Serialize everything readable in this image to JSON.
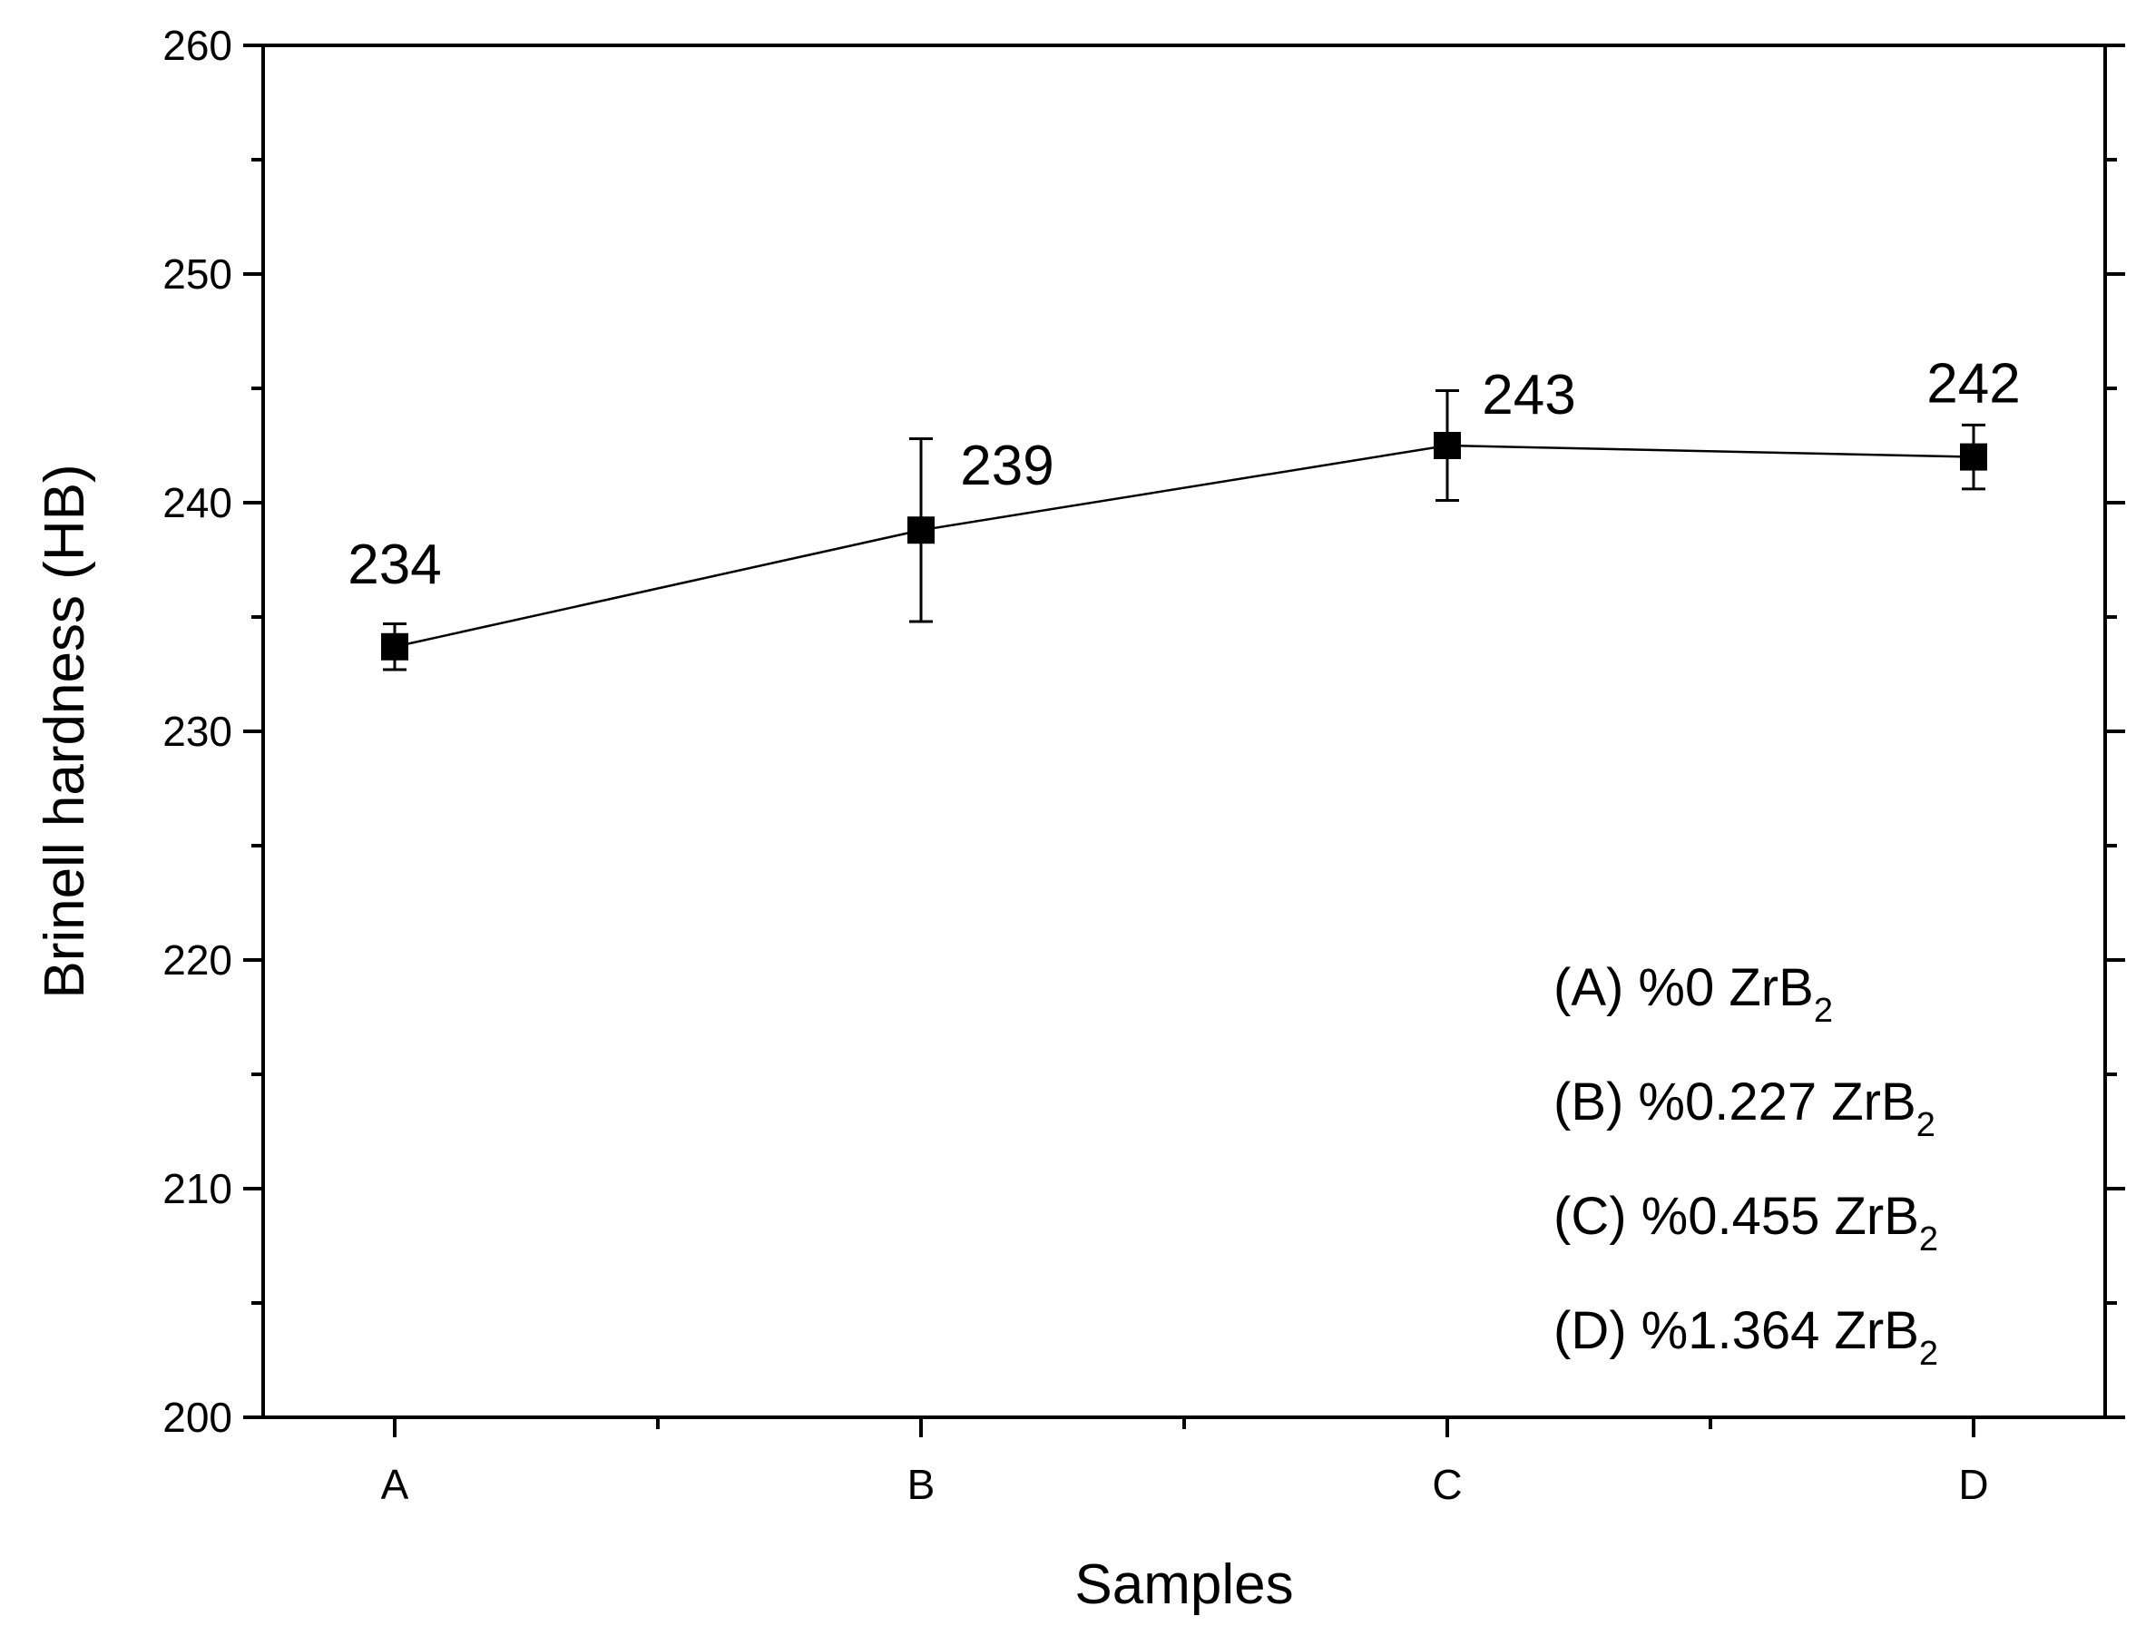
{
  "chart_data": {
    "type": "line",
    "title": "",
    "xlabel": "Samples",
    "ylabel": "Brinell hardness (HB)",
    "categories": [
      "A",
      "B",
      "C",
      "D"
    ],
    "ylim": [
      200,
      260
    ],
    "y_major_ticks": [
      200,
      210,
      220,
      230,
      240,
      250,
      260
    ],
    "y_tick_labels": [
      "200",
      "210",
      "220",
      "230",
      "240",
      "250",
      "260"
    ],
    "y_minor_step": 5,
    "grid": false,
    "series": [
      {
        "values": [
          233.7,
          238.8,
          242.5,
          242.0
        ],
        "error": [
          1.0,
          4.0,
          2.4,
          1.4
        ],
        "data_labels": [
          "234",
          "239",
          "243",
          "242"
        ],
        "marker": "square",
        "color": "#000000"
      }
    ],
    "legend_position": "bottom-right",
    "legend": [
      {
        "prefix": "(A) %0 ZrB",
        "sub": "2"
      },
      {
        "prefix": "(B) %0.227 ZrB",
        "sub": "2"
      },
      {
        "prefix": "(C) %0.455 ZrB",
        "sub": "2"
      },
      {
        "prefix": "(D) %1.364 ZrB",
        "sub": "2"
      }
    ]
  }
}
